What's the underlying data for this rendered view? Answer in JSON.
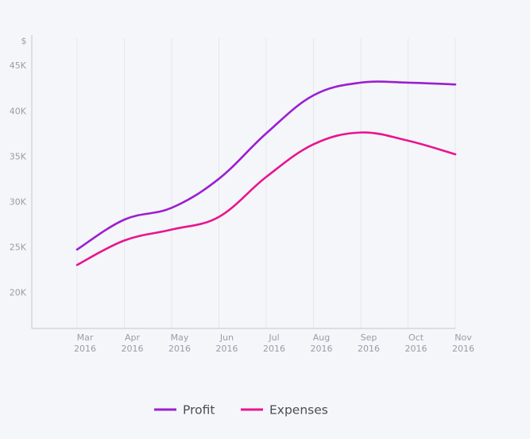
{
  "chart_data": {
    "type": "line",
    "ylabel": "$",
    "x": [
      "Mar 2016",
      "Apr 2016",
      "May 2016",
      "Jun 2016",
      "Jul 2016",
      "Aug 2016",
      "Sep 2016",
      "Oct 2016",
      "Nov 2016"
    ],
    "x_ticks": [
      {
        "month": "Mar",
        "year": "2016"
      },
      {
        "month": "Apr",
        "year": "2016"
      },
      {
        "month": "May",
        "year": "2016"
      },
      {
        "month": "Jun",
        "year": "2016"
      },
      {
        "month": "Jul",
        "year": "2016"
      },
      {
        "month": "Aug",
        "year": "2016"
      },
      {
        "month": "Sep",
        "year": "2016"
      },
      {
        "month": "Oct",
        "year": "2016"
      },
      {
        "month": "Nov",
        "year": "2016"
      }
    ],
    "y_ticks": [
      {
        "value": 20000,
        "label": "20K"
      },
      {
        "value": 25000,
        "label": "25K"
      },
      {
        "value": 30000,
        "label": "30K"
      },
      {
        "value": 35000,
        "label": "35K"
      },
      {
        "value": 40000,
        "label": "40K"
      },
      {
        "value": 45000,
        "label": "45K"
      }
    ],
    "ylim": [
      16000,
      48000
    ],
    "grid": "vertical",
    "legend_position": "bottom",
    "series": [
      {
        "name": "Profit",
        "color": "#9b1fd1",
        "values": [
          24700,
          28000,
          29300,
          32500,
          37500,
          41700,
          43100,
          43100,
          42900
        ]
      },
      {
        "name": "Expenses",
        "color": "#e8158f",
        "values": [
          23000,
          25700,
          26900,
          28300,
          32700,
          36300,
          37600,
          36700,
          35200
        ]
      }
    ]
  }
}
